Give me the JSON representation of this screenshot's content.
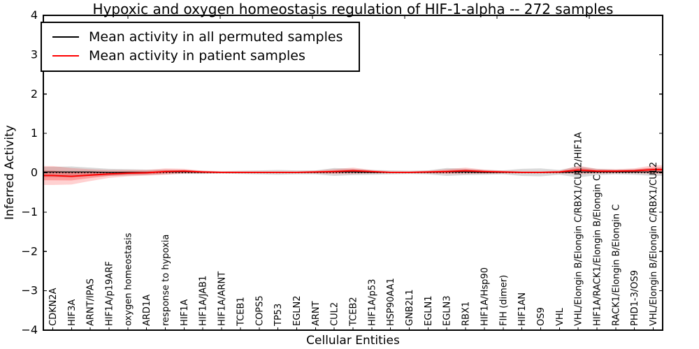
{
  "chart_data": {
    "type": "line",
    "title": "Hypoxic and oxygen homeostasis regulation of HIF-1-alpha -- 272 samples",
    "xlabel": "Cellular Entities",
    "ylabel": "Inferred Activity",
    "ylim": [
      -4,
      4
    ],
    "yticks": [
      4,
      3,
      2,
      1,
      0,
      -1,
      -2,
      -3,
      -4
    ],
    "grid": false,
    "legend_position": "upper left",
    "zero_line": {
      "y": 0,
      "style": "dotted",
      "color": "#000000"
    },
    "categories": [
      "CDKN2A",
      "HIF3A",
      "ARNT/IPAS",
      "HIF1A/p19ARF",
      "oxygen homeostasis",
      "ARD1A",
      "response to hypoxia",
      "HIF1A",
      "HIF1A/JAB1",
      "HIF1A/ARNT",
      "TCEB1",
      "COPS5",
      "TP53",
      "EGLN2",
      "ARNT",
      "CUL2",
      "TCEB2",
      "HIF1A/p53",
      "HSP90AA1",
      "GNB2L1",
      "EGLN1",
      "EGLN3",
      "RBX1",
      "HIF1A/Hsp90",
      "FIH (dimer)",
      "HIF1AN",
      "OS9",
      "VHL",
      "VHL/Elongin B/Elongin C/RBX1/CUL2/HIF1A",
      "HIF1A/RACK1/Elongin B/Elongin C",
      "RACK1/Elongin B/Elongin C",
      "PHD1-3/OS9",
      "VHL/Elongin B/Elongin C/RBX1/CUL2"
    ],
    "series": [
      {
        "name": "Mean activity in all permuted samples",
        "color": "#000000",
        "line_style": "solid",
        "values": [
          0.02,
          0.02,
          0.02,
          0.01,
          0.01,
          0.01,
          0.02,
          0.02,
          0.01,
          0.01,
          0.01,
          0.01,
          0.01,
          0.01,
          0.01,
          0.02,
          0.02,
          0.01,
          0.01,
          0.01,
          0.01,
          0.02,
          0.02,
          0.01,
          0.01,
          0.01,
          0.01,
          0.01,
          0.02,
          0.02,
          0.02,
          0.02,
          0.02
        ],
        "band": [
          0.13,
          0.14,
          0.11,
          0.09,
          0.08,
          0.07,
          0.06,
          0.05,
          0.04,
          0.03,
          0.04,
          0.05,
          0.06,
          0.05,
          0.05,
          0.1,
          0.08,
          0.06,
          0.05,
          0.04,
          0.05,
          0.1,
          0.08,
          0.06,
          0.05,
          0.09,
          0.1,
          0.06,
          0.14,
          0.08,
          0.06,
          0.07,
          0.1
        ],
        "band_color": "#808080"
      },
      {
        "name": "Mean activity in patient samples",
        "color": "#ff0000",
        "line_style": "solid",
        "values": [
          -0.07,
          -0.09,
          -0.06,
          -0.03,
          -0.01,
          0.0,
          0.03,
          0.04,
          0.02,
          0.01,
          0.01,
          0.01,
          0.01,
          0.01,
          0.02,
          0.03,
          0.05,
          0.03,
          0.01,
          0.01,
          0.02,
          0.03,
          0.05,
          0.03,
          0.02,
          0.01,
          0.01,
          0.02,
          0.07,
          0.04,
          0.04,
          0.05,
          0.08
        ],
        "band": [
          0.24,
          0.21,
          0.15,
          0.1,
          0.08,
          0.07,
          0.08,
          0.06,
          0.03,
          0.02,
          0.02,
          0.02,
          0.02,
          0.02,
          0.03,
          0.06,
          0.08,
          0.04,
          0.02,
          0.02,
          0.03,
          0.06,
          0.08,
          0.05,
          0.03,
          0.02,
          0.02,
          0.03,
          0.11,
          0.06,
          0.05,
          0.06,
          0.11
        ],
        "band_color": "#ff0000"
      }
    ]
  }
}
